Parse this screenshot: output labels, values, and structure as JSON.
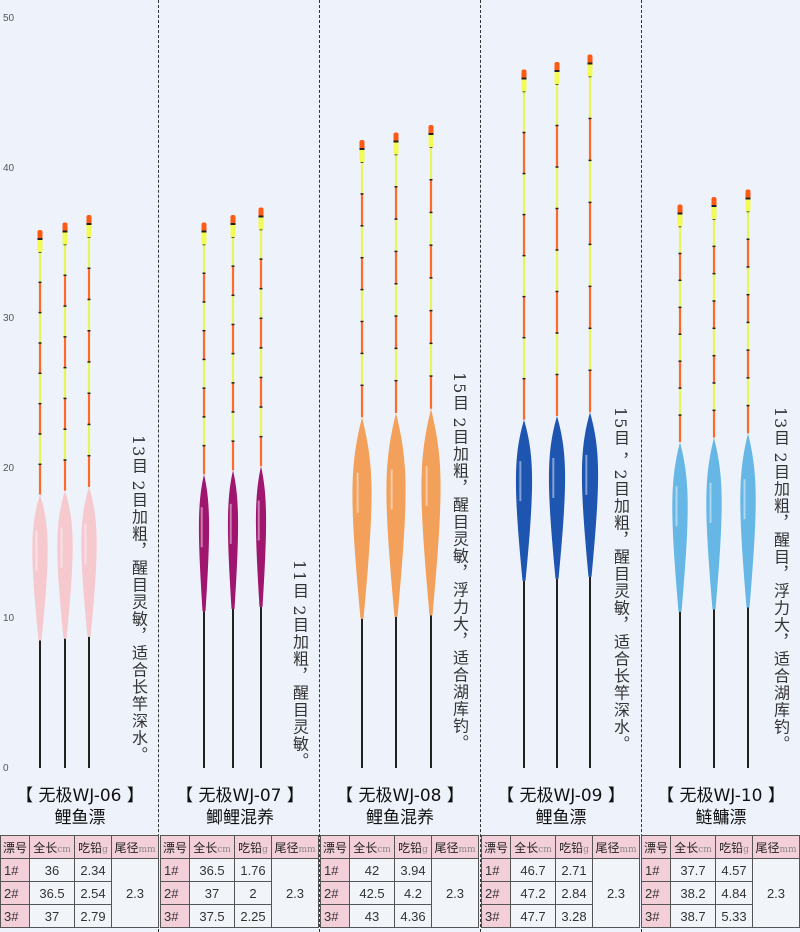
{
  "ruler": {
    "labels": [
      "50",
      "40",
      "30",
      "20",
      "10",
      "0"
    ],
    "unit": "cm",
    "min": 0,
    "max": 50
  },
  "table_headers": {
    "no": "漂号",
    "length": "全长",
    "length_unit": "cm",
    "lead": "吃铅",
    "lead_unit": "g",
    "tail": "尾径",
    "tail_unit": "mm"
  },
  "products": [
    {
      "model": "【 无极WJ-06 】",
      "type": "鲤鱼漂",
      "description": "13目 2目加粗，醒目灵敏，适合长竿深水。",
      "body_color": "#f6c9cf",
      "tail_diameter": "2.3",
      "rows": [
        {
          "no": "1#",
          "length": "36",
          "lead": "2.34"
        },
        {
          "no": "2#",
          "length": "36.5",
          "lead": "2.54"
        },
        {
          "no": "3#",
          "length": "37",
          "lead": "2.79"
        }
      ]
    },
    {
      "model": "【 无极WJ-07 】",
      "type": "鲫鲤混养",
      "description": "11目 2目加粗，醒目灵敏。",
      "body_color": "#a0166f",
      "tail_diameter": "2.3",
      "rows": [
        {
          "no": "1#",
          "length": "36.5",
          "lead": "1.76"
        },
        {
          "no": "2#",
          "length": "37",
          "lead": "2"
        },
        {
          "no": "3#",
          "length": "37.5",
          "lead": "2.25"
        }
      ]
    },
    {
      "model": "【 无极WJ-08 】",
      "type": "鲤鱼混养",
      "description": "15目 2目加粗，醒目灵敏，浮力大，适合湖库钓。",
      "body_color": "#f2a05a",
      "tail_diameter": "2.3",
      "rows": [
        {
          "no": "1#",
          "length": "42",
          "lead": "3.94"
        },
        {
          "no": "2#",
          "length": "42.5",
          "lead": "4.2"
        },
        {
          "no": "3#",
          "length": "43",
          "lead": "4.36"
        }
      ]
    },
    {
      "model": "【 无极WJ-09 】",
      "type": "鲤鱼漂",
      "description": "15目 ，2目加粗，醒目灵敏，适合长竿深水。",
      "body_color": "#1e55b0",
      "tail_diameter": "2.3",
      "rows": [
        {
          "no": "1#",
          "length": "46.7",
          "lead": "2.71"
        },
        {
          "no": "2#",
          "length": "47.2",
          "lead": "2.84"
        },
        {
          "no": "3#",
          "length": "47.7",
          "lead": "3.28"
        }
      ]
    },
    {
      "model": "【 无极WJ-10 】",
      "type": "鲢鳙漂",
      "description": "13目 2目加粗，醒目，浮力大，适合湖库钓。",
      "body_color": "#66b7e6",
      "tail_diameter": "2.3",
      "rows": [
        {
          "no": "1#",
          "length": "37.7",
          "lead": "4.57"
        },
        {
          "no": "2#",
          "length": "38.2",
          "lead": "4.84"
        },
        {
          "no": "3#",
          "length": "38.7",
          "lead": "5.33"
        }
      ]
    }
  ]
}
